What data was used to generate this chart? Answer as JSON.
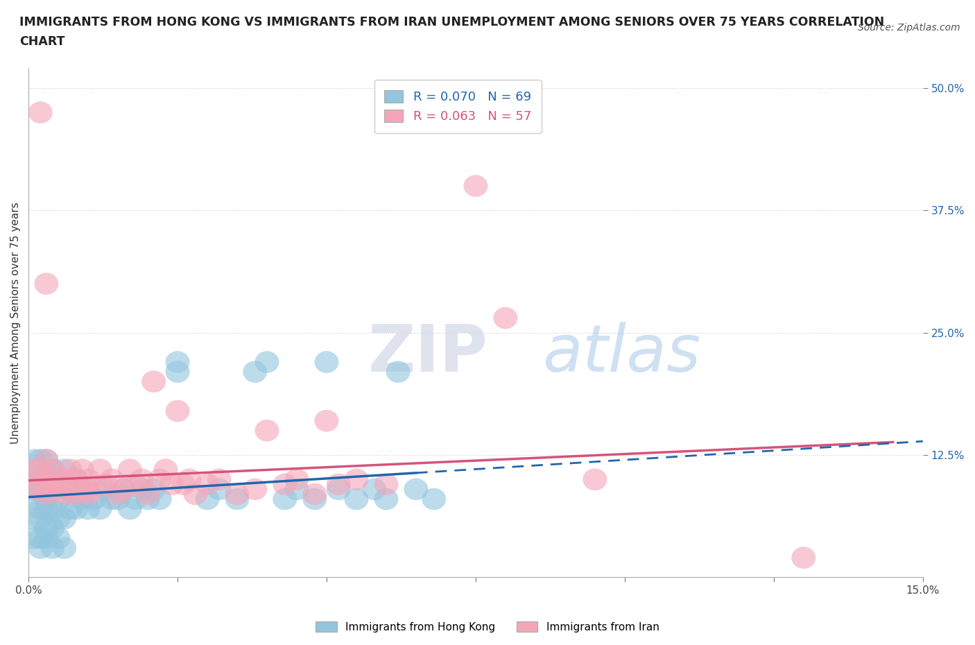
{
  "title_line1": "IMMIGRANTS FROM HONG KONG VS IMMIGRANTS FROM IRAN UNEMPLOYMENT AMONG SENIORS OVER 75 YEARS CORRELATION",
  "title_line2": "CHART",
  "source": "Source: ZipAtlas.com",
  "ylabel": "Unemployment Among Seniors over 75 years",
  "xlim": [
    0.0,
    0.15
  ],
  "ylim": [
    0.0,
    0.52
  ],
  "hk_color": "#92c5de",
  "hk_line_color": "#2166ac",
  "iran_color": "#f4a6b8",
  "iran_line_color": "#d6537a",
  "hk_R": 0.07,
  "hk_N": 69,
  "iran_R": 0.063,
  "iran_N": 57,
  "hk_trend_intercept": 0.082,
  "hk_trend_slope": 0.38,
  "hk_trend_solid_end": 0.065,
  "iran_trend_intercept": 0.099,
  "iran_trend_slope": 0.27,
  "iran_trend_end": 0.145,
  "hk_points": [
    [
      0.001,
      0.04
    ],
    [
      0.001,
      0.06
    ],
    [
      0.001,
      0.08
    ],
    [
      0.001,
      0.09
    ],
    [
      0.001,
      0.1
    ],
    [
      0.001,
      0.12
    ],
    [
      0.002,
      0.04
    ],
    [
      0.002,
      0.06
    ],
    [
      0.002,
      0.07
    ],
    [
      0.002,
      0.09
    ],
    [
      0.002,
      0.1
    ],
    [
      0.002,
      0.12
    ],
    [
      0.003,
      0.05
    ],
    [
      0.003,
      0.07
    ],
    [
      0.003,
      0.08
    ],
    [
      0.003,
      0.1
    ],
    [
      0.003,
      0.12
    ],
    [
      0.004,
      0.05
    ],
    [
      0.004,
      0.07
    ],
    [
      0.004,
      0.09
    ],
    [
      0.004,
      0.11
    ],
    [
      0.005,
      0.06
    ],
    [
      0.005,
      0.08
    ],
    [
      0.005,
      0.1
    ],
    [
      0.006,
      0.06
    ],
    [
      0.006,
      0.09
    ],
    [
      0.006,
      0.11
    ],
    [
      0.007,
      0.07
    ],
    [
      0.007,
      0.09
    ],
    [
      0.008,
      0.07
    ],
    [
      0.008,
      0.1
    ],
    [
      0.009,
      0.08
    ],
    [
      0.01,
      0.07
    ],
    [
      0.01,
      0.09
    ],
    [
      0.011,
      0.08
    ],
    [
      0.012,
      0.07
    ],
    [
      0.013,
      0.09
    ],
    [
      0.014,
      0.08
    ],
    [
      0.015,
      0.08
    ],
    [
      0.016,
      0.09
    ],
    [
      0.017,
      0.07
    ],
    [
      0.018,
      0.08
    ],
    [
      0.019,
      0.09
    ],
    [
      0.02,
      0.08
    ],
    [
      0.021,
      0.09
    ],
    [
      0.022,
      0.08
    ],
    [
      0.025,
      0.21
    ],
    [
      0.025,
      0.22
    ],
    [
      0.03,
      0.08
    ],
    [
      0.032,
      0.09
    ],
    [
      0.035,
      0.08
    ],
    [
      0.038,
      0.21
    ],
    [
      0.04,
      0.22
    ],
    [
      0.043,
      0.08
    ],
    [
      0.045,
      0.09
    ],
    [
      0.048,
      0.08
    ],
    [
      0.05,
      0.22
    ],
    [
      0.052,
      0.09
    ],
    [
      0.055,
      0.08
    ],
    [
      0.058,
      0.09
    ],
    [
      0.06,
      0.08
    ],
    [
      0.062,
      0.21
    ],
    [
      0.065,
      0.09
    ],
    [
      0.068,
      0.08
    ],
    [
      0.002,
      0.03
    ],
    [
      0.003,
      0.04
    ],
    [
      0.004,
      0.03
    ],
    [
      0.005,
      0.04
    ],
    [
      0.006,
      0.03
    ]
  ],
  "iran_points": [
    [
      0.001,
      0.09
    ],
    [
      0.001,
      0.11
    ],
    [
      0.002,
      0.095
    ],
    [
      0.002,
      0.11
    ],
    [
      0.003,
      0.085
    ],
    [
      0.003,
      0.1
    ],
    [
      0.003,
      0.12
    ],
    [
      0.004,
      0.09
    ],
    [
      0.004,
      0.11
    ],
    [
      0.005,
      0.095
    ],
    [
      0.005,
      0.1
    ],
    [
      0.006,
      0.085
    ],
    [
      0.006,
      0.1
    ],
    [
      0.007,
      0.09
    ],
    [
      0.007,
      0.11
    ],
    [
      0.008,
      0.085
    ],
    [
      0.008,
      0.1
    ],
    [
      0.009,
      0.09
    ],
    [
      0.009,
      0.11
    ],
    [
      0.01,
      0.085
    ],
    [
      0.01,
      0.1
    ],
    [
      0.011,
      0.09
    ],
    [
      0.012,
      0.11
    ],
    [
      0.013,
      0.095
    ],
    [
      0.014,
      0.1
    ],
    [
      0.015,
      0.085
    ],
    [
      0.016,
      0.09
    ],
    [
      0.017,
      0.11
    ],
    [
      0.018,
      0.095
    ],
    [
      0.019,
      0.1
    ],
    [
      0.02,
      0.085
    ],
    [
      0.021,
      0.2
    ],
    [
      0.022,
      0.1
    ],
    [
      0.023,
      0.11
    ],
    [
      0.024,
      0.095
    ],
    [
      0.025,
      0.17
    ],
    [
      0.026,
      0.095
    ],
    [
      0.027,
      0.1
    ],
    [
      0.028,
      0.085
    ],
    [
      0.03,
      0.095
    ],
    [
      0.032,
      0.1
    ],
    [
      0.035,
      0.085
    ],
    [
      0.038,
      0.09
    ],
    [
      0.04,
      0.15
    ],
    [
      0.043,
      0.095
    ],
    [
      0.045,
      0.1
    ],
    [
      0.048,
      0.085
    ],
    [
      0.05,
      0.16
    ],
    [
      0.052,
      0.095
    ],
    [
      0.055,
      0.1
    ],
    [
      0.002,
      0.475
    ],
    [
      0.003,
      0.3
    ],
    [
      0.06,
      0.095
    ],
    [
      0.075,
      0.4
    ],
    [
      0.08,
      0.265
    ],
    [
      0.095,
      0.1
    ],
    [
      0.13,
      0.02
    ]
  ]
}
